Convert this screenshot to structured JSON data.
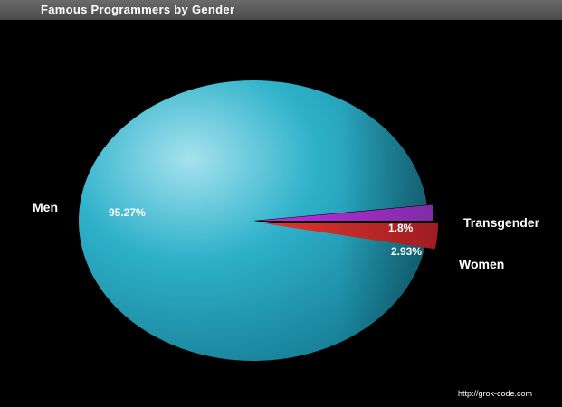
{
  "chart_data": {
    "type": "pie",
    "title": "Famous Programmers by Gender",
    "slices": [
      {
        "label": "Men",
        "value": 95.27,
        "value_label": "95.27%",
        "color": "#2aaac4"
      },
      {
        "label": "Women",
        "value": 2.93,
        "value_label": "2.93%",
        "color": "#c8262c"
      },
      {
        "label": "Transgender",
        "value": 1.8,
        "value_label": "1.8%",
        "color": "#a31fc0"
      }
    ]
  },
  "source_url": "http://grok-code.com"
}
